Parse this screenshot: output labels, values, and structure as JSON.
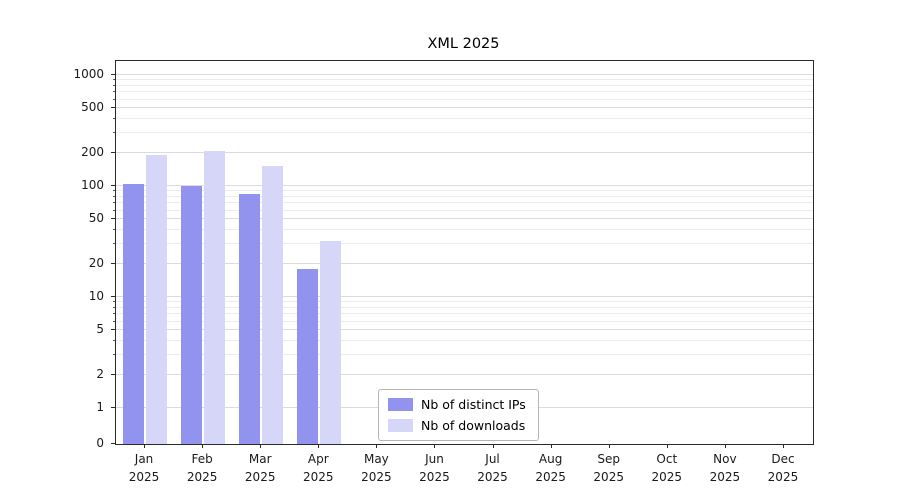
{
  "chart_data": {
    "type": "bar",
    "title": "XML 2025",
    "categories": [
      "Jan",
      "Feb",
      "Mar",
      "Apr",
      "May",
      "Jun",
      "Jul",
      "Aug",
      "Sep",
      "Oct",
      "Nov",
      "Dec"
    ],
    "category_sub_label": "2025",
    "series": [
      {
        "name": "Nb of distinct IPs",
        "color": "#9193ee",
        "values": [
          105,
          100,
          85,
          18,
          0,
          0,
          0,
          0,
          0,
          0,
          0,
          0
        ]
      },
      {
        "name": "Nb of downloads",
        "color": "#d6d7f8",
        "values": [
          190,
          205,
          150,
          32,
          0,
          0,
          0,
          0,
          0,
          0,
          0,
          0
        ]
      }
    ],
    "y_scale": "log",
    "y_ticks": [
      0,
      1,
      2,
      5,
      10,
      20,
      50,
      100,
      200,
      500,
      1000
    ],
    "y_minor_ticks": [
      3,
      4,
      6,
      7,
      8,
      9,
      30,
      40,
      60,
      70,
      80,
      90,
      300,
      400,
      600,
      700,
      800,
      900
    ],
    "ylim": [
      0,
      1200
    ],
    "xlabel": "",
    "ylabel": "",
    "grid": "horizontal",
    "legend_position": "lower center"
  }
}
